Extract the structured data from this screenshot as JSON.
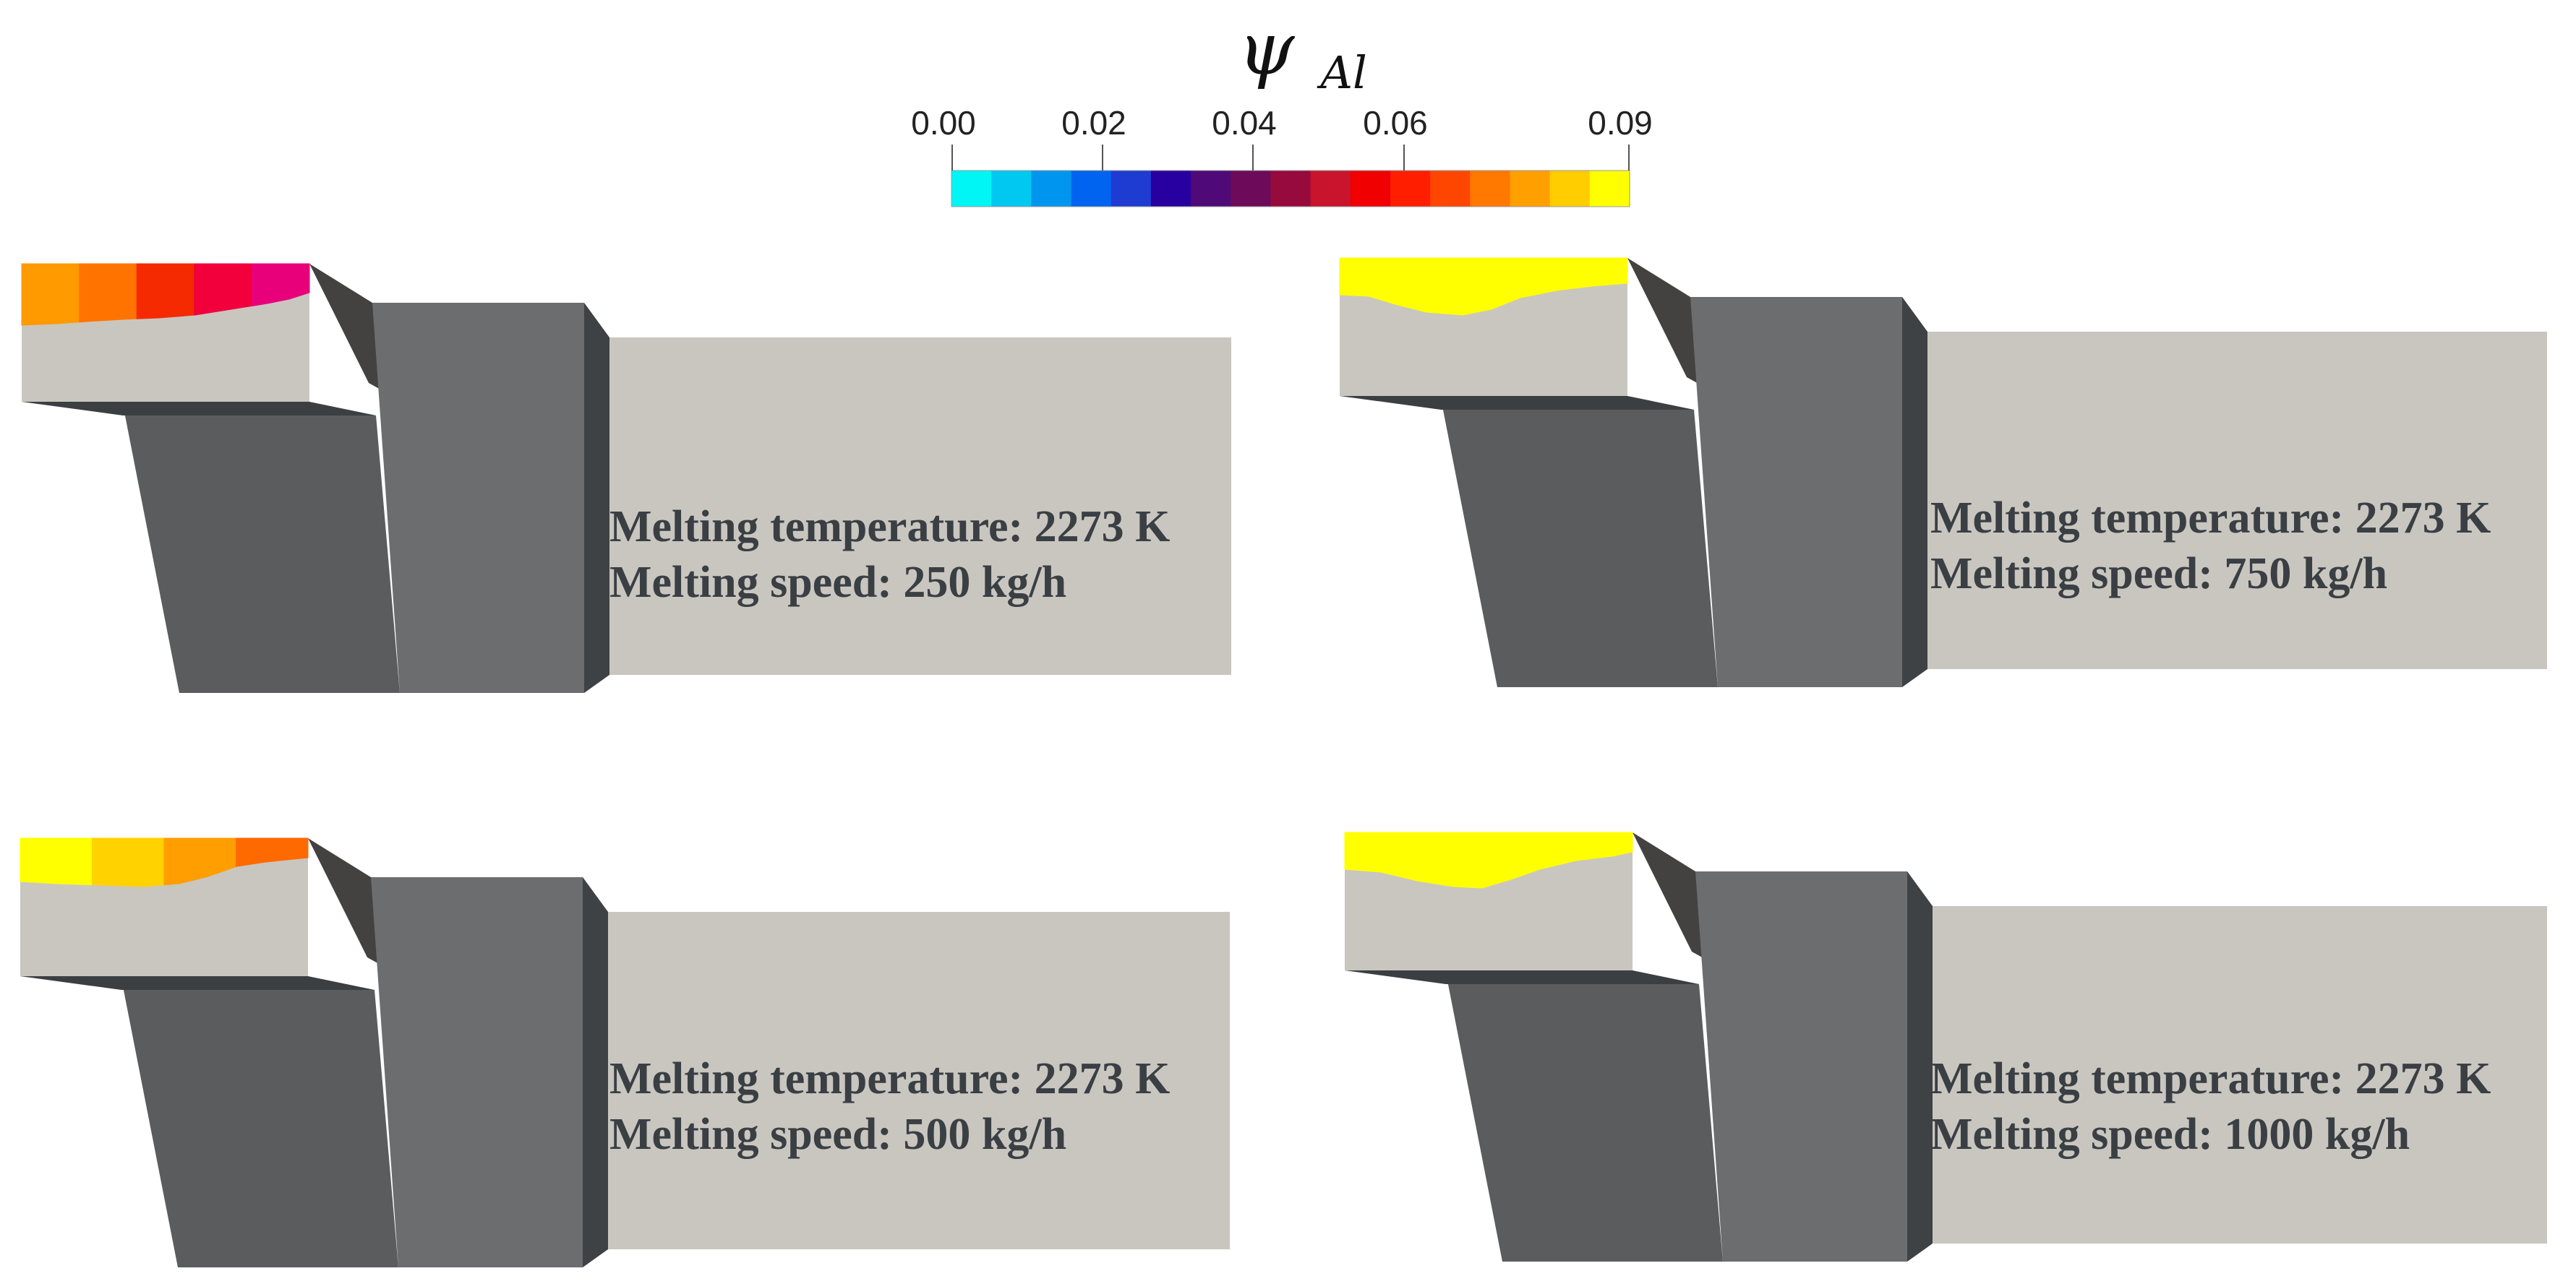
{
  "colorbar": {
    "symbol": "ψ",
    "subscript": "Al",
    "ticks": [
      "0.00",
      "0.02",
      "0.04",
      "0.06",
      "0.09"
    ],
    "range": [
      0.0,
      0.09
    ],
    "colors": [
      "#00f5f5",
      "#00c8f0",
      "#0096f0",
      "#0064f0",
      "#1e3cd2",
      "#2800a0",
      "#500a78",
      "#6e0a5a",
      "#960a3c",
      "#c8142d",
      "#f00000",
      "#ff1e00",
      "#ff4600",
      "#ff7800",
      "#ffa000",
      "#ffcd00",
      "#ffff00"
    ]
  },
  "cases": [
    {
      "temperature_line": "Melting temperature: 2273 K",
      "speed_line": "Melting speed: 250 kg/h",
      "melt_colors": [
        "#ff9a00",
        "#ff7400",
        "#f52a00",
        "#f2003c",
        "#e8007a"
      ]
    },
    {
      "temperature_line": "Melting temperature: 2273 K",
      "speed_line": "Melting speed: 750 kg/h",
      "melt_colors": [
        "#ffff00"
      ]
    },
    {
      "temperature_line": "Melting temperature: 2273 K",
      "speed_line": "Melting speed: 500 kg/h",
      "melt_colors": [
        "#ffff00",
        "#ffd200",
        "#ff9e00",
        "#ff6a00"
      ]
    },
    {
      "temperature_line": "Melting temperature: 2273 K",
      "speed_line": "Melting speed: 1000 kg/h",
      "melt_colors": [
        "#ffff00"
      ]
    }
  ]
}
